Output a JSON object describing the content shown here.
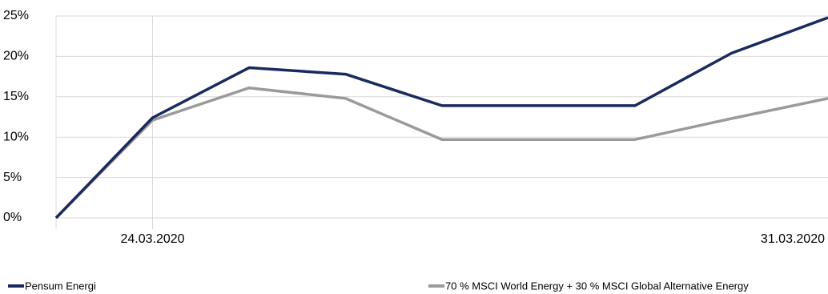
{
  "chart_data": {
    "type": "line",
    "categories": [
      null,
      "24.03.2020",
      null,
      null,
      null,
      null,
      null,
      null,
      "31.03.2020"
    ],
    "series": [
      {
        "name": "Pensum Energi",
        "color": "#1b2a5e",
        "values": [
          0,
          12.4,
          18.6,
          17.8,
          13.9,
          13.9,
          13.9,
          20.4,
          24.8
        ]
      },
      {
        "name": "70 % MSCI World Energy + 30 % MSCI Global Alternative Energy",
        "color": "#9a9a9a",
        "values": [
          0,
          12.1,
          16.1,
          14.8,
          9.7,
          9.7,
          9.7,
          12.3,
          14.8
        ]
      }
    ],
    "ylim": [
      0,
      25
    ],
    "yticks": [
      {
        "value": 0,
        "label": "0%"
      },
      {
        "value": 5,
        "label": "5%"
      },
      {
        "value": 10,
        "label": "10%"
      },
      {
        "value": 15,
        "label": "15%"
      },
      {
        "value": 20,
        "label": "20%"
      },
      {
        "value": 25,
        "label": "25%"
      }
    ],
    "grid": true
  }
}
